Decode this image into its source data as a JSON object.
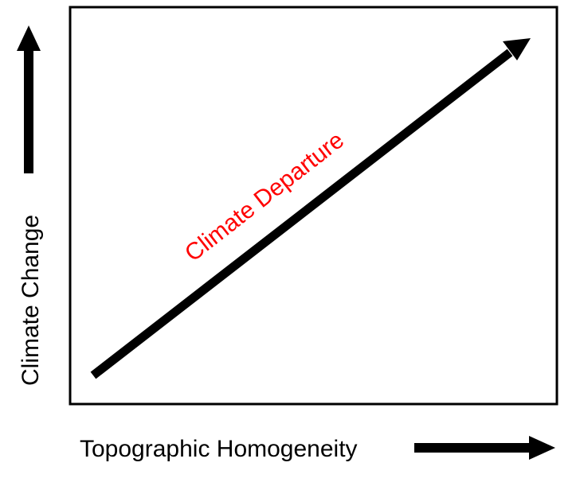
{
  "diagram": {
    "x_axis_label": "Topographic Homogeneity",
    "y_axis_label": "Climate Change",
    "diagonal_label": "Climate Departure",
    "colors": {
      "frame": "#000000",
      "arrows": "#000000",
      "diagonal_label": "#ff0000"
    }
  }
}
